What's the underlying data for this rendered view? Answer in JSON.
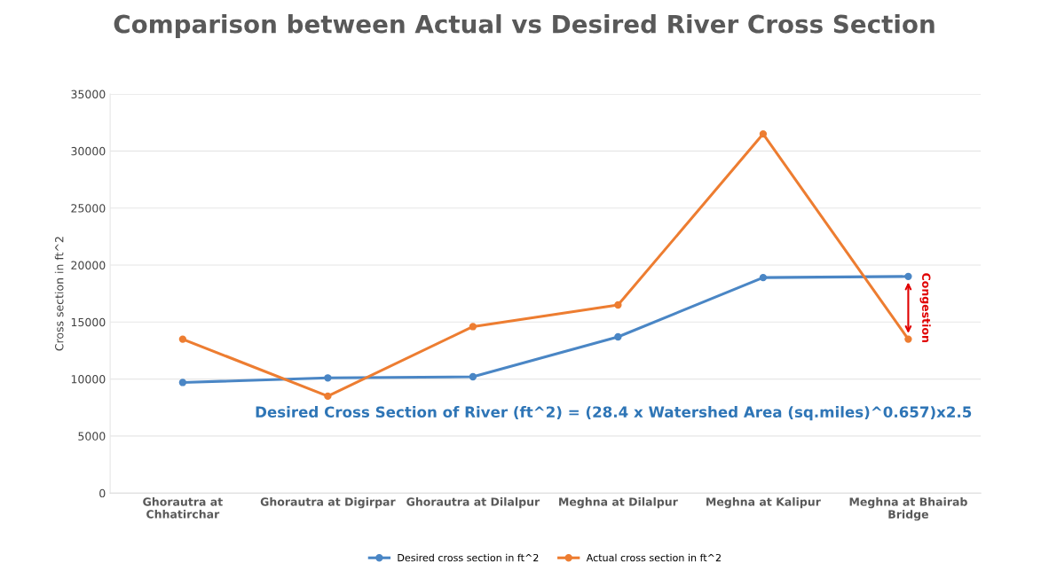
{
  "chart_data": {
    "type": "line",
    "title": "Comparison between Actual vs Desired River Cross Section",
    "ylabel": "Cross section in ft^2",
    "categories": [
      "Ghorautra at Chhatirchar",
      "Ghorautra at Digirpar",
      "Ghorautra at Dilalpur",
      "Meghna at Dilalpur",
      "Meghna at Kalipur",
      "Meghna at Bhairab Bridge"
    ],
    "series": [
      {
        "name": "Desired cross section in ft^2",
        "color": "#4a86c5",
        "values": [
          9700,
          10100,
          10200,
          13700,
          18900,
          19000
        ]
      },
      {
        "name": "Actual cross section in ft^2",
        "color": "#ed7d31",
        "values": [
          13500,
          8500,
          14600,
          16500,
          31500,
          13500
        ]
      }
    ],
    "ylim": [
      0,
      35000
    ],
    "yticks": [
      0,
      5000,
      10000,
      15000,
      20000,
      25000,
      30000,
      35000
    ],
    "grid": "y",
    "legend": "bottom",
    "marker": "circle",
    "line_style": "solid",
    "annotations": [
      "Congestion",
      "Desired Cross Section of River (ft^2) = (28.4 x Watershed Area (sq.miles)^0.657)x2.5"
    ]
  }
}
